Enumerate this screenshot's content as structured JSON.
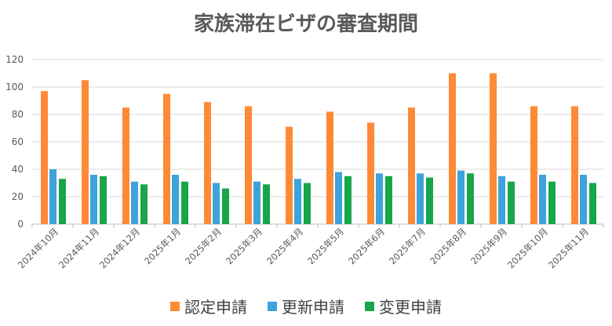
{
  "chart_data": {
    "type": "bar",
    "title": "家族滞在ビザの審査期間",
    "xlabel": "",
    "ylabel": "",
    "ylim": [
      0,
      120
    ],
    "yticks": [
      0,
      20,
      40,
      60,
      80,
      100,
      120
    ],
    "grid": true,
    "legend_position": "bottom",
    "categories": [
      "2024年10月",
      "2024年11月",
      "2024年12月",
      "2025年1月",
      "2025年2月",
      "2025年3月",
      "2025年4月",
      "2025年5月",
      "2025年6月",
      "2025年7月",
      "2025年8月",
      "2025年9月",
      "2025年10月",
      "2025年11月"
    ],
    "series": [
      {
        "name": "認定申請",
        "color": "#FF8A36",
        "values": [
          97,
          105,
          85,
          95,
          89,
          86,
          71,
          82,
          74,
          85,
          110,
          110,
          86,
          86
        ]
      },
      {
        "name": "更新申請",
        "color": "#3EA3DB",
        "values": [
          40,
          36,
          31,
          36,
          30,
          31,
          33,
          38,
          37,
          37,
          39,
          35,
          36,
          36
        ]
      },
      {
        "name": "変更申請",
        "color": "#17A64A",
        "values": [
          33,
          35,
          29,
          31,
          26,
          29,
          30,
          35,
          35,
          34,
          37,
          31,
          31,
          30
        ]
      }
    ]
  }
}
